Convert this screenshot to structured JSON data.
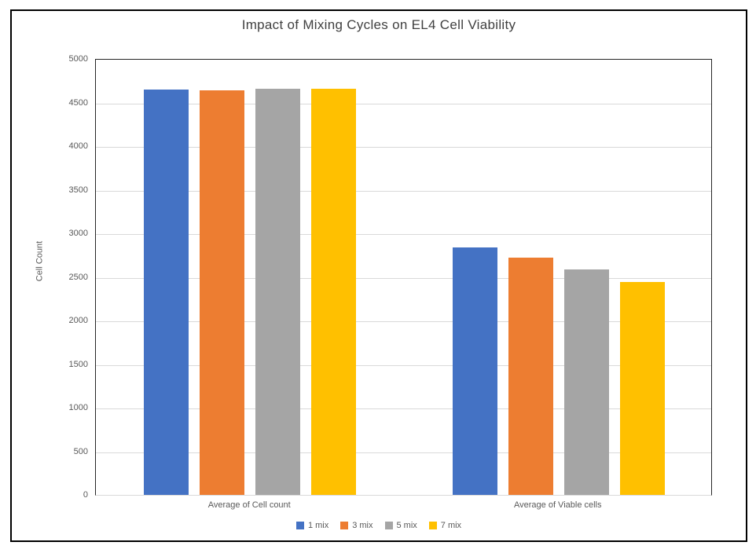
{
  "chart_data": {
    "type": "bar",
    "title": "Impact of Mixing Cycles on EL4 Cell Viability",
    "ylabel": "Cell Count",
    "xlabel": "",
    "categories": [
      "Average of Cell count",
      "Average of Viable cells"
    ],
    "series": [
      {
        "name": "1 mix",
        "color": "#4472C4",
        "values": [
          4650,
          2840
        ]
      },
      {
        "name": "3 mix",
        "color": "#ED7D31",
        "values": [
          4640,
          2720
        ]
      },
      {
        "name": "5 mix",
        "color": "#A5A5A5",
        "values": [
          4660,
          2590
        ]
      },
      {
        "name": "7 mix",
        "color": "#FFC000",
        "values": [
          4660,
          2445
        ]
      }
    ],
    "ylim": [
      0,
      5000
    ],
    "yticks": [
      0,
      500,
      1000,
      1500,
      2000,
      2500,
      3000,
      3500,
      4000,
      4500,
      5000
    ],
    "grid": true,
    "legend_position": "bottom",
    "colors": {
      "gridline": "#D9D9D9",
      "axis_text": "#595959",
      "title_text": "#404040",
      "plot_border": "#262626",
      "frame_border": "#000000"
    }
  }
}
